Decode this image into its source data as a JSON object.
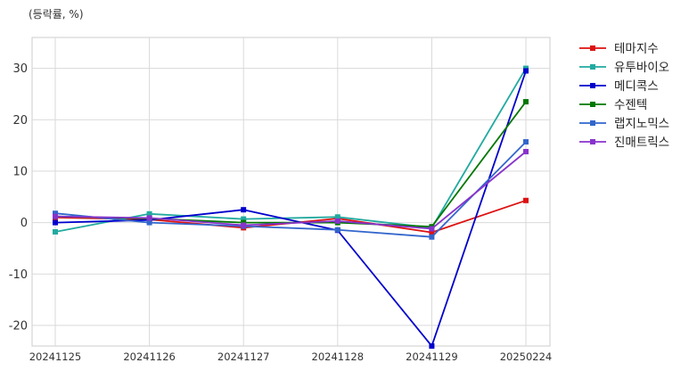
{
  "chart_data": {
    "type": "line",
    "unit_label": "(등락률, %)",
    "categories": [
      "20241125",
      "20241126",
      "20241127",
      "20241128",
      "20241129",
      "20250224"
    ],
    "ylim": [
      -24,
      36
    ],
    "yticks": [
      -20,
      -10,
      0,
      10,
      20,
      30
    ],
    "grid": true,
    "legend_position": "outside-top-right",
    "series": [
      {
        "name": "테마지수",
        "color": "#dd1111",
        "values": [
          1.0,
          0.6,
          -1.0,
          0.8,
          -1.9,
          4.3
        ]
      },
      {
        "name": "유투바이오",
        "color": "#22aaa0",
        "values": [
          -1.8,
          1.7,
          0.7,
          1.1,
          -1.0,
          30.0
        ]
      },
      {
        "name": "메디콕스",
        "color": "#0000cc",
        "values": [
          0.0,
          0.5,
          2.5,
          -1.5,
          -24.0,
          29.5
        ]
      },
      {
        "name": "수젠텍",
        "color": "#007700",
        "values": [
          1.2,
          0.8,
          0.0,
          0.0,
          -0.8,
          23.5
        ]
      },
      {
        "name": "랩지노믹스",
        "color": "#3366cc",
        "values": [
          1.8,
          0.0,
          -0.7,
          -1.4,
          -2.8,
          15.7
        ]
      },
      {
        "name": "진매트릭스",
        "color": "#8833cc",
        "values": [
          1.2,
          0.9,
          -0.5,
          0.3,
          -1.2,
          13.8
        ]
      }
    ]
  }
}
